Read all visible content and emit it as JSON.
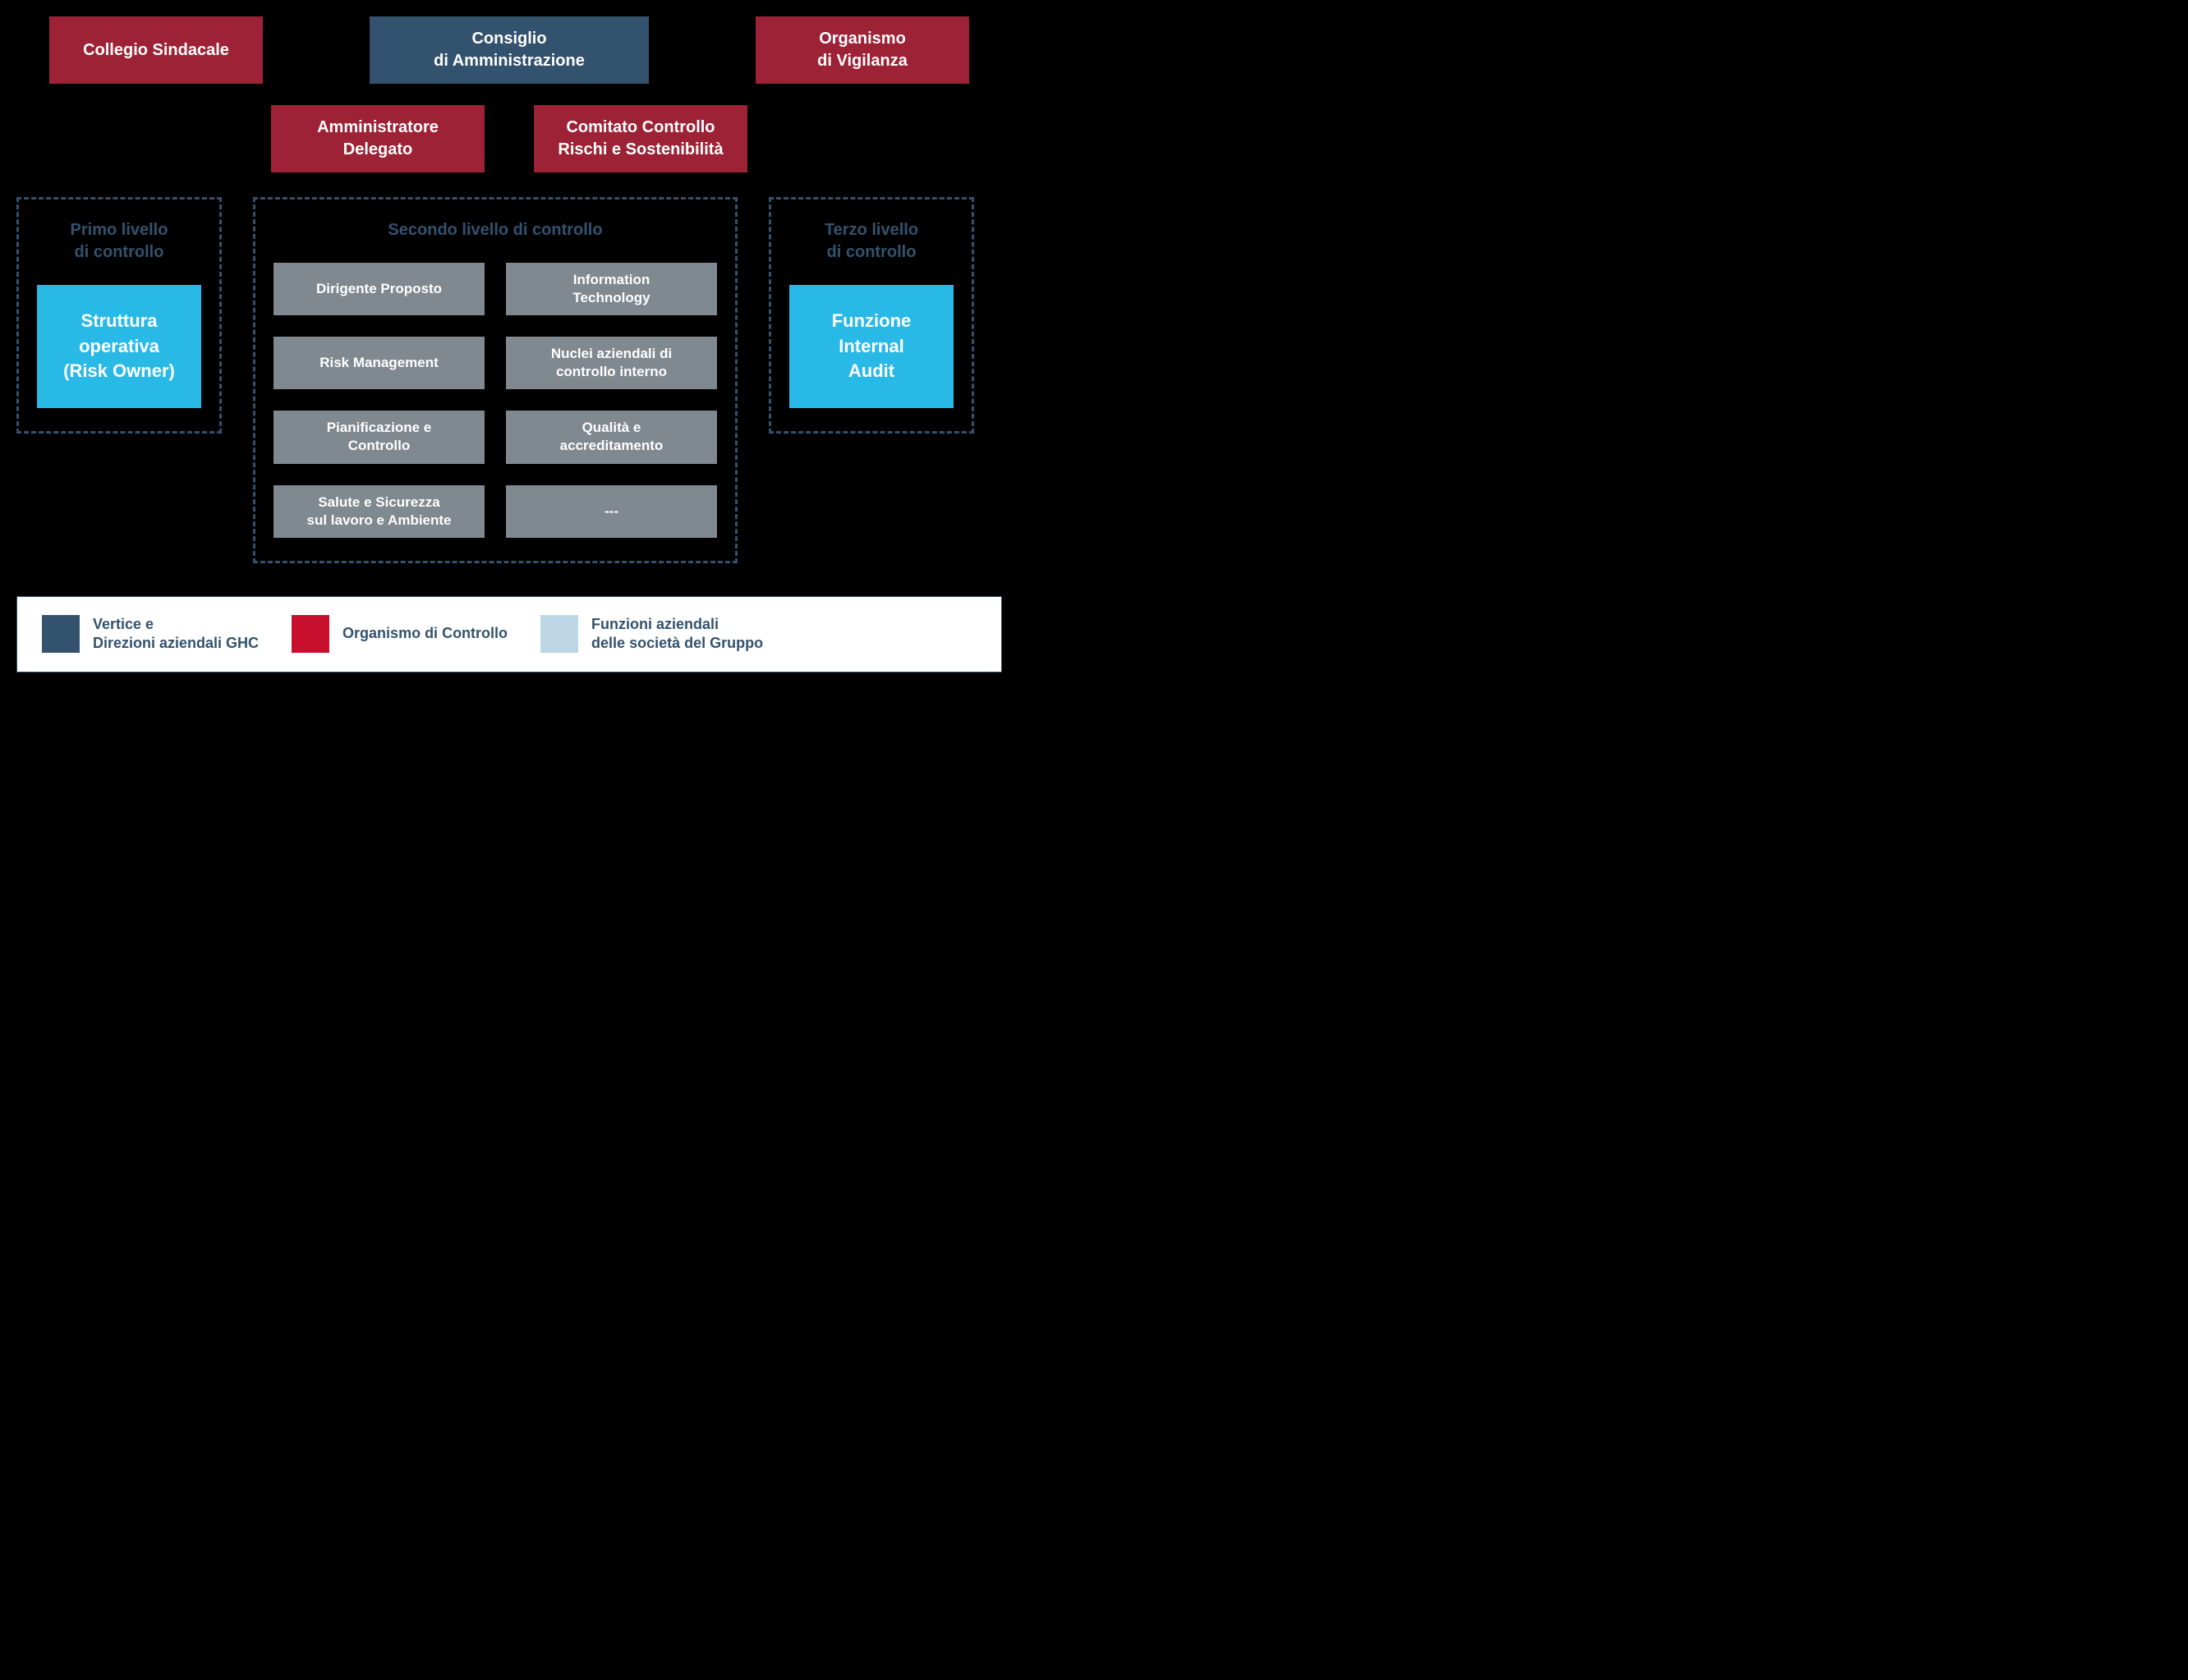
{
  "colors": {
    "bg": "#000000",
    "red": "#9d2235",
    "blue": "#33526e",
    "cyan": "#29b9e6",
    "gray": "#808890",
    "cyan_light": "#bcd6e6",
    "white": "#ffffff",
    "dashed_border": "#33526e"
  },
  "typography": {
    "font_family": "Segoe UI, Arial, sans-serif",
    "gov_box_fs": 20,
    "level_title_fs": 20,
    "cyan_box_fs": 22,
    "gray_box_fs": 17,
    "legend_fs": 18,
    "weight": 700
  },
  "top_row": [
    {
      "label": "Collegio Sindacale",
      "color": "red"
    },
    {
      "label": "Consiglio\ndi Amministrazione",
      "color": "blue"
    },
    {
      "label": "Organismo\ndi Vigilanza",
      "color": "red"
    }
  ],
  "second_row": [
    {
      "label": "Amministratore\nDelegato",
      "color": "red"
    },
    {
      "label": "Comitato Controllo\nRischi e Sostenibilità",
      "color": "red"
    }
  ],
  "levels": {
    "l1": {
      "title": "Primo livello\ndi controllo",
      "box": "Struttura\noperativa\n(Risk Owner)"
    },
    "l2": {
      "title": "Secondo livello di controllo",
      "items": [
        "Dirigente Proposto",
        "Information\nTechnology",
        "Risk Management",
        "Nuclei aziendali di\ncontrollo interno",
        "Pianificazione e\nControllo",
        "Qualità e\naccreditamento",
        "Salute e Sicurezza\nsul lavoro e Ambiente",
        "---"
      ]
    },
    "l3": {
      "title": "Terzo livello\ndi controllo",
      "box": "Funzione\nInternal\nAudit"
    }
  },
  "legend": [
    {
      "swatch": "#33526e",
      "text": "Vertice e\nDirezioni aziendali GHC"
    },
    {
      "swatch": "#c8102e",
      "text": "Organismo di Controllo"
    },
    {
      "swatch": "#bcd6e6",
      "text": "Funzioni aziendali\ndelle società del Gruppo"
    }
  ]
}
